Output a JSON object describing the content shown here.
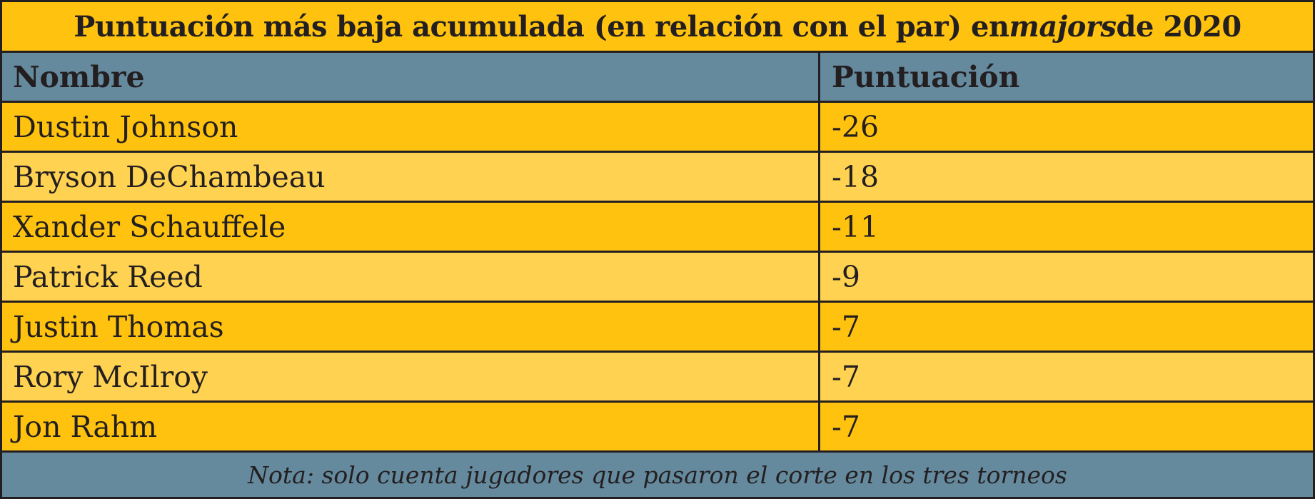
{
  "title": {
    "before": "Puntuación más baja acumulada (en relación con el par) en ",
    "emphasis": "majors",
    "after": " de 2020"
  },
  "columns": {
    "name": "Nombre",
    "score": "Puntuación"
  },
  "rows": [
    {
      "name": "Dustin Johnson",
      "score": "-26"
    },
    {
      "name": "Bryson DeChambeau",
      "score": "-18"
    },
    {
      "name": "Xander Schauffele",
      "score": "-11"
    },
    {
      "name": "Patrick Reed",
      "score": "-9"
    },
    {
      "name": "Justin Thomas",
      "score": "-7"
    },
    {
      "name": "Rory McIlroy",
      "score": "-7"
    },
    {
      "name": "Jon Rahm",
      "score": "-7"
    }
  ],
  "note": "Nota: solo cuenta jugadores que pasaron el corte en los tres torneos",
  "colors": {
    "title_background": "#ffc20e",
    "header_background": "#658a9e",
    "row_dark": "#ffc20e",
    "row_light": "#ffd351",
    "border": "#231f20"
  }
}
